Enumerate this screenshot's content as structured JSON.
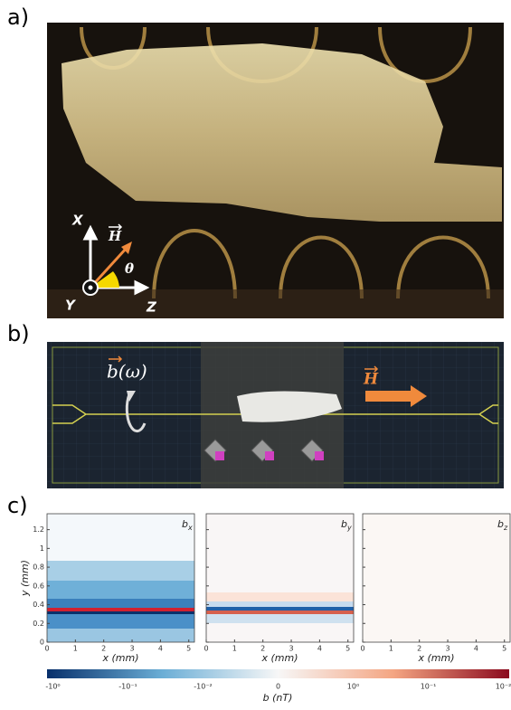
{
  "panel_a": {
    "label": "a)",
    "axes": {
      "x": "X",
      "y": "Y",
      "z": "Z",
      "field": "H",
      "angle": "θ"
    }
  },
  "panel_b": {
    "label": "b)",
    "drive": "b(ω)",
    "field": "H"
  },
  "panel_c": {
    "label": "c)",
    "xlabel": "x (mm)",
    "ylabel": "y (mm)",
    "xlim": [
      0,
      5.2
    ],
    "ylim": [
      0,
      1.37
    ],
    "xticks": [
      0,
      1,
      2,
      3,
      4,
      5
    ],
    "yticks": [
      0,
      0.2,
      0.4,
      0.6,
      0.8,
      1,
      1.2
    ],
    "plots": [
      {
        "symbol": "b",
        "component": "x"
      },
      {
        "symbol": "b",
        "component": "y"
      },
      {
        "symbol": "b",
        "component": "z"
      }
    ],
    "colorbar": {
      "label": "b (nT)",
      "ticks": [
        "-10⁰",
        "-10⁻¹",
        "-10⁻²",
        "0",
        "10⁰",
        "10⁻¹",
        "10⁻²"
      ]
    }
  }
}
